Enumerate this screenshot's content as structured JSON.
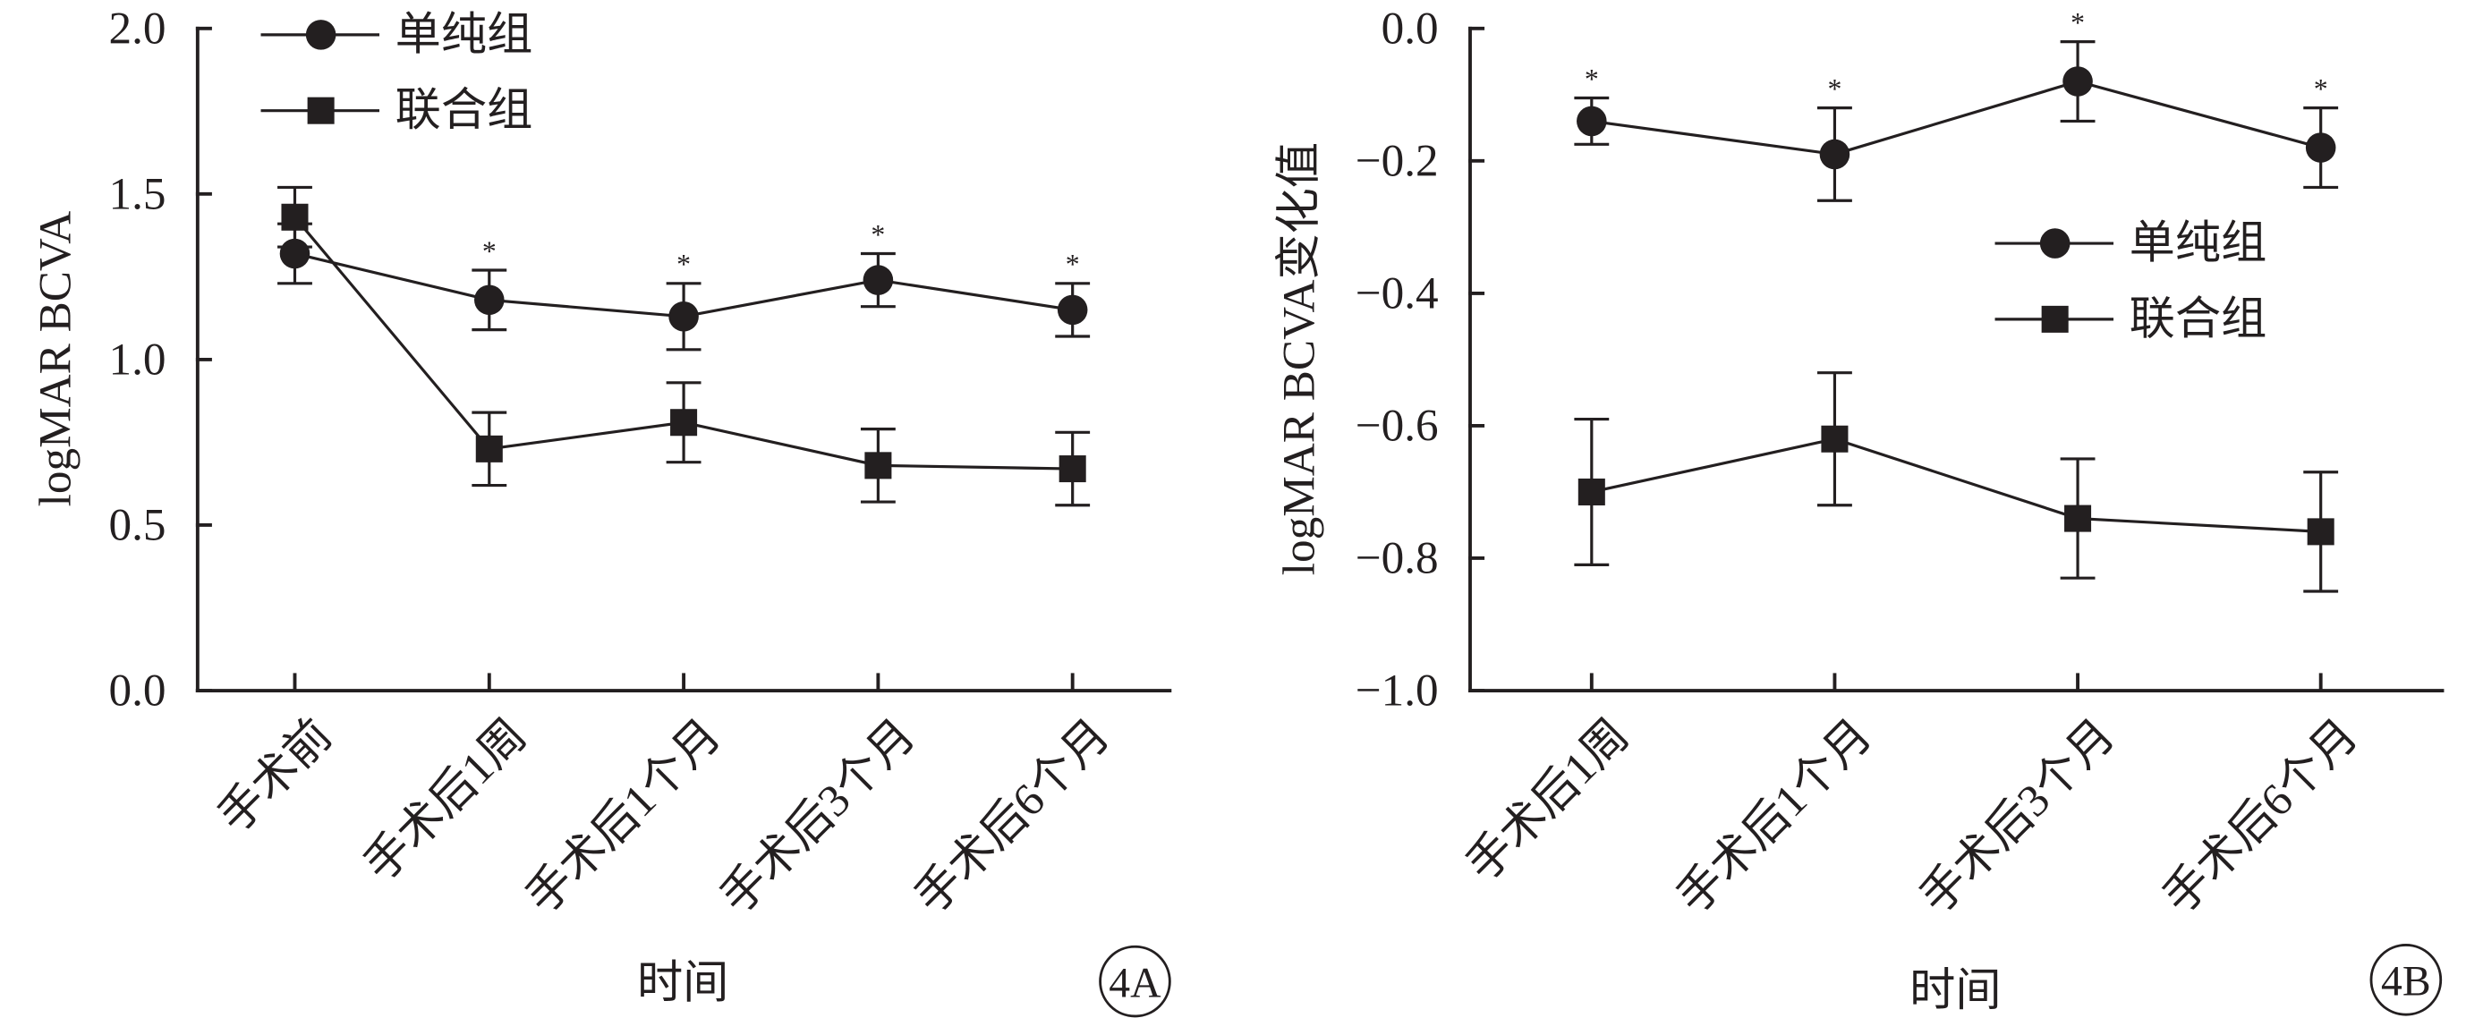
{
  "chart_data": [
    {
      "type": "line",
      "panel_label": "4A",
      "categories": [
        "手术前",
        "手术后1周",
        "手术后1个月",
        "手术后3个月",
        "手术后6个月"
      ],
      "series": [
        {
          "name": "单纯组",
          "marker": "circle",
          "color": "#231f20",
          "values": [
            1.32,
            1.18,
            1.13,
            1.24,
            1.15
          ],
          "error": [
            0.09,
            0.09,
            0.1,
            0.08,
            0.08
          ]
        },
        {
          "name": "联合组",
          "marker": "square",
          "color": "#231f20",
          "values": [
            1.43,
            0.73,
            0.81,
            0.68,
            0.67
          ],
          "error": [
            0.09,
            0.11,
            0.12,
            0.11,
            0.11
          ]
        }
      ],
      "significance": [
        "",
        "*",
        "*",
        "*",
        "*"
      ],
      "xlabel": "时间",
      "ylabel": "logMAR BCVA",
      "ylim": [
        0,
        2.0
      ],
      "yticks": [
        0,
        0.5,
        1.0,
        1.5,
        2.0
      ],
      "ytick_labels": [
        "0.0",
        "0.5",
        "1.0",
        "1.5",
        "2.0"
      ],
      "legend_position": "top-left",
      "grid": false
    },
    {
      "type": "line",
      "panel_label": "4B",
      "categories": [
        "手术后1周",
        "手术后1个月",
        "手术后3个月",
        "手术后6个月"
      ],
      "series": [
        {
          "name": "单纯组",
          "marker": "circle",
          "color": "#231f20",
          "values": [
            -0.14,
            -0.19,
            -0.08,
            -0.18
          ],
          "error": [
            0.035,
            0.07,
            0.06,
            0.06
          ]
        },
        {
          "name": "联合组",
          "marker": "square",
          "color": "#231f20",
          "values": [
            -0.7,
            -0.62,
            -0.74,
            -0.76
          ],
          "error": [
            0.11,
            0.1,
            0.09,
            0.09
          ]
        }
      ],
      "significance": [
        "*",
        "*",
        "*",
        "*"
      ],
      "xlabel": "时间",
      "ylabel": "logMAR BCVA变化值",
      "ylim": [
        -1.0,
        0.0
      ],
      "yticks": [
        -1.0,
        -0.8,
        -0.6,
        -0.4,
        -0.2,
        0.0
      ],
      "ytick_labels": [
        "−1.0",
        "−0.8",
        "−0.6",
        "−0.4",
        "−0.2",
        "0.0"
      ],
      "legend_position": "center-right",
      "grid": false
    }
  ]
}
